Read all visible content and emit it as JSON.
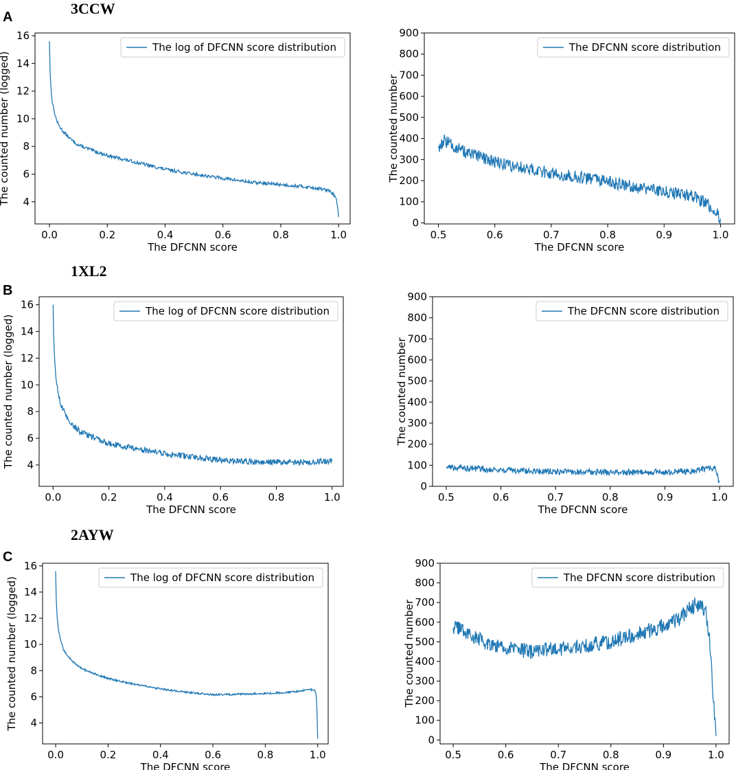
{
  "panels": [
    {
      "letter": "A",
      "title": "3CCW"
    },
    {
      "letter": "B",
      "title": "1XL2"
    },
    {
      "letter": "C",
      "title": "2AYW"
    }
  ],
  "colors": {
    "series": "#1f77b4",
    "axis": "#000000"
  },
  "chart_data": [
    {
      "id": "A-left",
      "type": "line",
      "panel": "A",
      "xlabel": "The DFCNN score",
      "ylabel": "The counted number (logged)",
      "xlim": [
        -0.05,
        1.04
      ],
      "ylim": [
        2.4,
        16.2
      ],
      "xticks": [
        0.0,
        0.2,
        0.4,
        0.6,
        0.8,
        1.0
      ],
      "xtick_labels": [
        "0.0",
        "0.2",
        "0.4",
        "0.6",
        "0.8",
        "1.0"
      ],
      "yticks": [
        4,
        6,
        8,
        10,
        12,
        14,
        16
      ],
      "ytick_labels": [
        "4",
        "6",
        "8",
        "10",
        "12",
        "14",
        "16"
      ],
      "legend": "The log of DFCNN score distribution",
      "legend_loc": "top-right",
      "series": [
        {
          "name": "The log of DFCNN score distribution",
          "x": [
            0.0,
            0.002,
            0.005,
            0.01,
            0.02,
            0.03,
            0.05,
            0.08,
            0.1,
            0.15,
            0.2,
            0.3,
            0.4,
            0.5,
            0.6,
            0.7,
            0.8,
            0.9,
            0.95,
            0.97,
            0.98,
            0.99,
            0.995,
            0.998,
            1.0
          ],
          "y": [
            15.6,
            13.5,
            12.2,
            11.2,
            10.2,
            9.6,
            9.0,
            8.4,
            8.1,
            7.7,
            7.35,
            6.85,
            6.35,
            6.0,
            5.7,
            5.4,
            5.25,
            5.05,
            4.9,
            4.75,
            4.6,
            4.3,
            3.9,
            3.4,
            2.9
          ],
          "noise": 0.12
        }
      ]
    },
    {
      "id": "A-right",
      "type": "line",
      "panel": "A",
      "xlabel": "The DFCNN score",
      "ylabel": "The counted number",
      "xlim": [
        0.475,
        1.025
      ],
      "ylim": [
        -5,
        900
      ],
      "xticks": [
        0.5,
        0.6,
        0.7,
        0.8,
        0.9,
        1.0
      ],
      "xtick_labels": [
        "0.5",
        "0.6",
        "0.7",
        "0.8",
        "0.9",
        "1.0"
      ],
      "yticks": [
        0,
        100,
        200,
        300,
        400,
        500,
        600,
        700,
        800,
        900
      ],
      "ytick_labels": [
        "0",
        "100",
        "200",
        "300",
        "400",
        "500",
        "600",
        "700",
        "800",
        "900"
      ],
      "legend": "The DFCNN score distribution",
      "legend_loc": "top-right",
      "series": [
        {
          "name": "The DFCNN score distribution",
          "x": [
            0.5,
            0.51,
            0.55,
            0.6,
            0.65,
            0.7,
            0.75,
            0.8,
            0.85,
            0.9,
            0.95,
            0.97,
            0.98,
            0.99,
            1.0
          ],
          "y": [
            355,
            390,
            330,
            290,
            260,
            235,
            215,
            195,
            170,
            150,
            125,
            100,
            80,
            55,
            20
          ],
          "noise": 30
        }
      ]
    },
    {
      "id": "B-left",
      "type": "line",
      "panel": "B",
      "xlabel": "The DFCNN score",
      "ylabel": "The counted number (logged)",
      "xlim": [
        -0.05,
        1.04
      ],
      "ylim": [
        2.4,
        16.6
      ],
      "xticks": [
        0.0,
        0.2,
        0.4,
        0.6,
        0.8,
        1.0
      ],
      "xtick_labels": [
        "0.0",
        "0.2",
        "0.4",
        "0.6",
        "0.8",
        "1.0"
      ],
      "yticks": [
        4,
        6,
        8,
        10,
        12,
        14,
        16
      ],
      "ytick_labels": [
        "4",
        "6",
        "8",
        "10",
        "12",
        "14",
        "16"
      ],
      "legend": "The log of DFCNN score distribution",
      "legend_loc": "top-right",
      "series": [
        {
          "name": "The log of DFCNN score distribution",
          "x": [
            0.0,
            0.002,
            0.005,
            0.01,
            0.02,
            0.03,
            0.05,
            0.08,
            0.1,
            0.15,
            0.2,
            0.3,
            0.4,
            0.5,
            0.6,
            0.7,
            0.8,
            0.9,
            1.0
          ],
          "y": [
            16.0,
            13.5,
            12.0,
            10.6,
            9.2,
            8.4,
            7.5,
            6.8,
            6.45,
            6.0,
            5.6,
            5.2,
            4.85,
            4.6,
            4.35,
            4.25,
            4.2,
            4.2,
            4.3
          ],
          "noise": 0.22
        }
      ]
    },
    {
      "id": "B-right",
      "type": "line",
      "panel": "B",
      "xlabel": "The DFCNN score",
      "ylabel": "The counted number",
      "xlim": [
        0.475,
        1.025
      ],
      "ylim": [
        0,
        900
      ],
      "xticks": [
        0.5,
        0.6,
        0.7,
        0.8,
        0.9,
        1.0
      ],
      "xtick_labels": [
        "0.5",
        "0.6",
        "0.7",
        "0.8",
        "0.9",
        "1.0"
      ],
      "yticks": [
        0,
        100,
        200,
        300,
        400,
        500,
        600,
        700,
        800,
        900
      ],
      "ytick_labels": [
        "0",
        "100",
        "200",
        "300",
        "400",
        "500",
        "600",
        "700",
        "800",
        "900"
      ],
      "legend": "The DFCNN score distribution",
      "legend_loc": "top-right",
      "series": [
        {
          "name": "The DFCNN score distribution",
          "x": [
            0.5,
            0.55,
            0.6,
            0.65,
            0.7,
            0.75,
            0.8,
            0.85,
            0.9,
            0.95,
            0.99,
            1.0
          ],
          "y": [
            92,
            85,
            78,
            72,
            70,
            68,
            66,
            66,
            68,
            72,
            90,
            20
          ],
          "noise": 15
        }
      ]
    },
    {
      "id": "C-left",
      "type": "line",
      "panel": "C",
      "xlabel": "The DFCNN score",
      "ylabel": "The counted number (logged)",
      "xlim": [
        -0.05,
        1.04
      ],
      "ylim": [
        2.4,
        16.2
      ],
      "xticks": [
        0.0,
        0.2,
        0.4,
        0.6,
        0.8,
        1.0
      ],
      "xtick_labels": [
        "0.0",
        "0.2",
        "0.4",
        "0.6",
        "0.8",
        "1.0"
      ],
      "yticks": [
        4,
        6,
        8,
        10,
        12,
        14,
        16
      ],
      "ytick_labels": [
        "4",
        "6",
        "8",
        "10",
        "12",
        "14",
        "16"
      ],
      "legend": "The log of DFCNN score distribution",
      "legend_loc": "top-right",
      "series": [
        {
          "name": "The log of DFCNN score distribution",
          "x": [
            0.0,
            0.002,
            0.005,
            0.01,
            0.02,
            0.03,
            0.05,
            0.08,
            0.1,
            0.15,
            0.2,
            0.3,
            0.4,
            0.5,
            0.6,
            0.7,
            0.8,
            0.9,
            0.95,
            0.98,
            0.99,
            0.995,
            0.998,
            1.0
          ],
          "y": [
            15.6,
            13.5,
            12.2,
            11.2,
            10.2,
            9.6,
            9.0,
            8.45,
            8.15,
            7.75,
            7.4,
            6.95,
            6.6,
            6.35,
            6.15,
            6.2,
            6.25,
            6.35,
            6.5,
            6.55,
            6.45,
            6.0,
            4.5,
            2.8
          ],
          "noise": 0.07
        }
      ]
    },
    {
      "id": "C-right",
      "type": "line",
      "panel": "C",
      "xlabel": "The DFCNN score",
      "ylabel": "The counted number",
      "xlim": [
        0.475,
        1.025
      ],
      "ylim": [
        -20,
        900
      ],
      "xticks": [
        0.5,
        0.6,
        0.7,
        0.8,
        0.9,
        1.0
      ],
      "xtick_labels": [
        "0.5",
        "0.6",
        "0.7",
        "0.8",
        "0.9",
        "1.0"
      ],
      "yticks": [
        0,
        100,
        200,
        300,
        400,
        500,
        600,
        700,
        800,
        900
      ],
      "ytick_labels": [
        "0",
        "100",
        "200",
        "300",
        "400",
        "500",
        "600",
        "700",
        "800",
        "900"
      ],
      "legend": "The DFCNN score distribution",
      "legend_loc": "top-right",
      "series": [
        {
          "name": "The DFCNN score distribution",
          "x": [
            0.5,
            0.52,
            0.55,
            0.6,
            0.65,
            0.7,
            0.75,
            0.8,
            0.85,
            0.9,
            0.93,
            0.96,
            0.98,
            0.985,
            0.99,
            0.995,
            1.0
          ],
          "y": [
            570,
            560,
            510,
            470,
            450,
            465,
            480,
            500,
            540,
            580,
            620,
            690,
            660,
            560,
            450,
            200,
            20
          ],
          "noise": 40
        }
      ]
    }
  ]
}
